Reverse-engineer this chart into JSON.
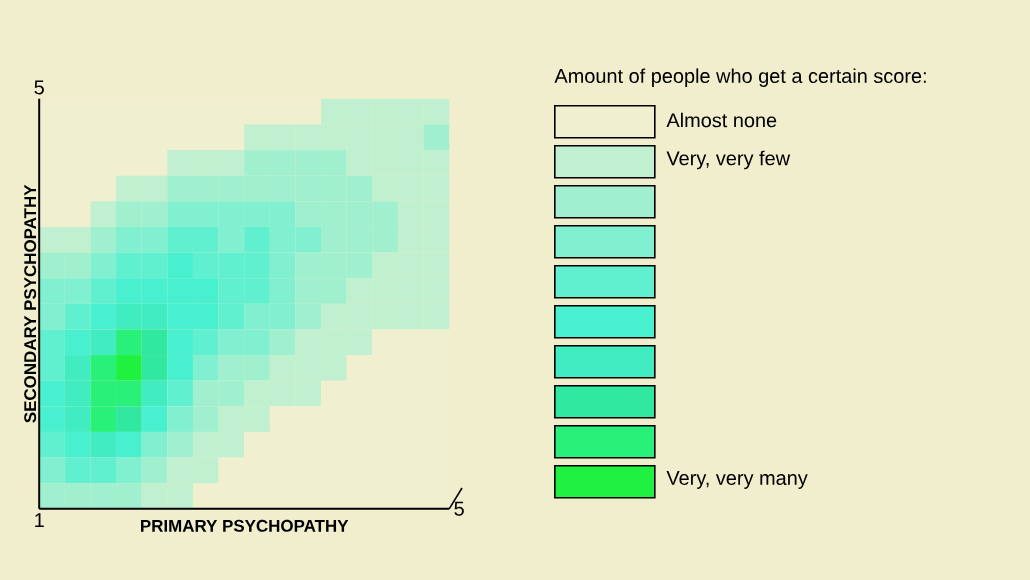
{
  "chart_data": {
    "type": "heatmap",
    "xlabel": "PRIMARY PSYCHOPATHY",
    "ylabel": "SECONDARY PSYCHOPATHY",
    "clabel": "Amount of people who get a certain score:",
    "annotations": [
      "1",
      "5",
      "5"
    ],
    "categories": [
      null,
      null,
      null,
      null,
      null,
      null,
      null,
      null,
      null,
      null,
      null,
      null,
      null,
      null,
      null,
      null
    ],
    "y_categories": [
      null,
      null,
      null,
      null,
      null,
      null,
      null,
      null,
      null,
      null,
      null,
      null,
      null,
      null,
      null,
      null
    ],
    "cells": [
      [
        0,
        0,
        0,
        0,
        0,
        0,
        0,
        0,
        0,
        0,
        0,
        1,
        1,
        1,
        1,
        1
      ],
      [
        0,
        0,
        0,
        0,
        0,
        0,
        0,
        0,
        1,
        1,
        1,
        1,
        1,
        1,
        1,
        2
      ],
      [
        0,
        0,
        0,
        0,
        0,
        1,
        1,
        1,
        2,
        2,
        2,
        2,
        1,
        1,
        1,
        1
      ],
      [
        0,
        0,
        0,
        1,
        1,
        2,
        2,
        2,
        2,
        2,
        2,
        2,
        2,
        1,
        1,
        1
      ],
      [
        0,
        0,
        1,
        2,
        2,
        3,
        3,
        3,
        3,
        3,
        2,
        2,
        2,
        2,
        1,
        1
      ],
      [
        1,
        1,
        2,
        3,
        3,
        4,
        4,
        3,
        4,
        3,
        3,
        2,
        2,
        2,
        1,
        1
      ],
      [
        2,
        2,
        3,
        4,
        4,
        5,
        4,
        4,
        4,
        3,
        2,
        2,
        2,
        1,
        1,
        1
      ],
      [
        3,
        3,
        4,
        5,
        5,
        5,
        5,
        4,
        4,
        3,
        2,
        2,
        1,
        1,
        1,
        1
      ],
      [
        3,
        4,
        5,
        6,
        6,
        5,
        5,
        4,
        3,
        3,
        2,
        1,
        1,
        1,
        1,
        1
      ],
      [
        4,
        5,
        6,
        8,
        7,
        5,
        4,
        3,
        3,
        2,
        1,
        1,
        1,
        0,
        0,
        0
      ],
      [
        4,
        6,
        8,
        9,
        7,
        5,
        3,
        2,
        2,
        1,
        1,
        1,
        0,
        0,
        0,
        0
      ],
      [
        5,
        6,
        8,
        8,
        6,
        4,
        2,
        2,
        1,
        1,
        1,
        0,
        0,
        0,
        0,
        0
      ],
      [
        5,
        6,
        8,
        7,
        5,
        3,
        2,
        1,
        1,
        0,
        0,
        0,
        0,
        0,
        0,
        0
      ],
      [
        4,
        5,
        6,
        5,
        3,
        2,
        1,
        1,
        0,
        0,
        0,
        0,
        0,
        0,
        0,
        0
      ],
      [
        3,
        4,
        4,
        3,
        2,
        1,
        1,
        0,
        0,
        0,
        0,
        0,
        0,
        0,
        0,
        0
      ],
      [
        2,
        2,
        2,
        2,
        1,
        1,
        0,
        0,
        0,
        0,
        0,
        0,
        0,
        0,
        0,
        0
      ]
    ],
    "clim": [
      0,
      9
    ],
    "cticks": [
      {
        "value": 0,
        "label": "Almost none"
      },
      {
        "value": 1,
        "label": "Very, very few"
      },
      {
        "value": 9,
        "label": "Very, very many"
      }
    ],
    "colors": [
      "#f0f0d0",
      "#c0f0d0",
      "#a0f0d0",
      "#80f0d0",
      "#60f0d0",
      "#48f0d0",
      "#40ecc0",
      "#30e8a0",
      "#28f078",
      "#20f040"
    ]
  }
}
